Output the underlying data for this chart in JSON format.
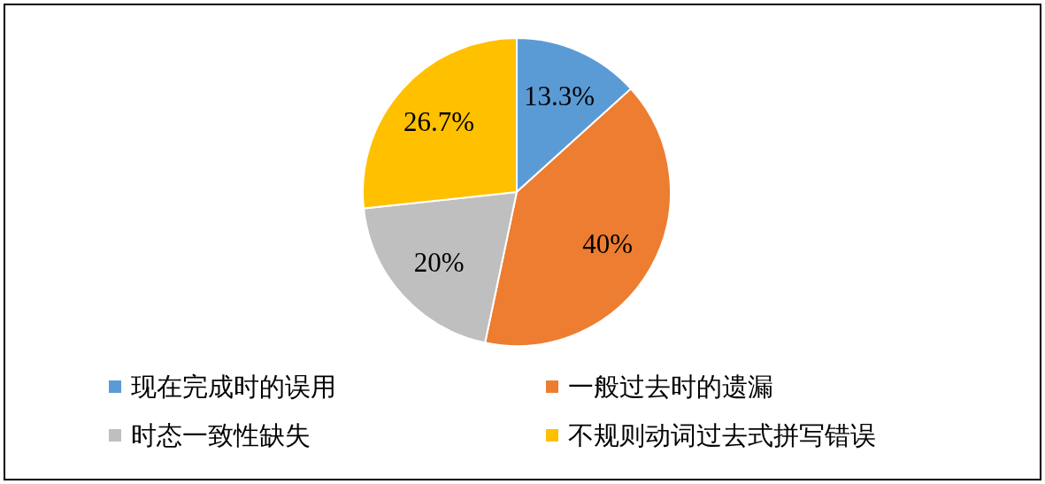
{
  "chart_data": {
    "type": "pie",
    "categories": [
      "现在完成时的误用",
      "一般过去时的遗漏",
      "时态一致性缺失",
      "不规则动词过去式拼写错误"
    ],
    "values": [
      13.3,
      40,
      20,
      26.7
    ],
    "colors": [
      "#5b9bd5",
      "#ed7d31",
      "#bfbfbf",
      "#ffc000"
    ],
    "value_labels": [
      "13.3%",
      "40%",
      "20%",
      "26.7%"
    ],
    "legend": "bottom"
  }
}
